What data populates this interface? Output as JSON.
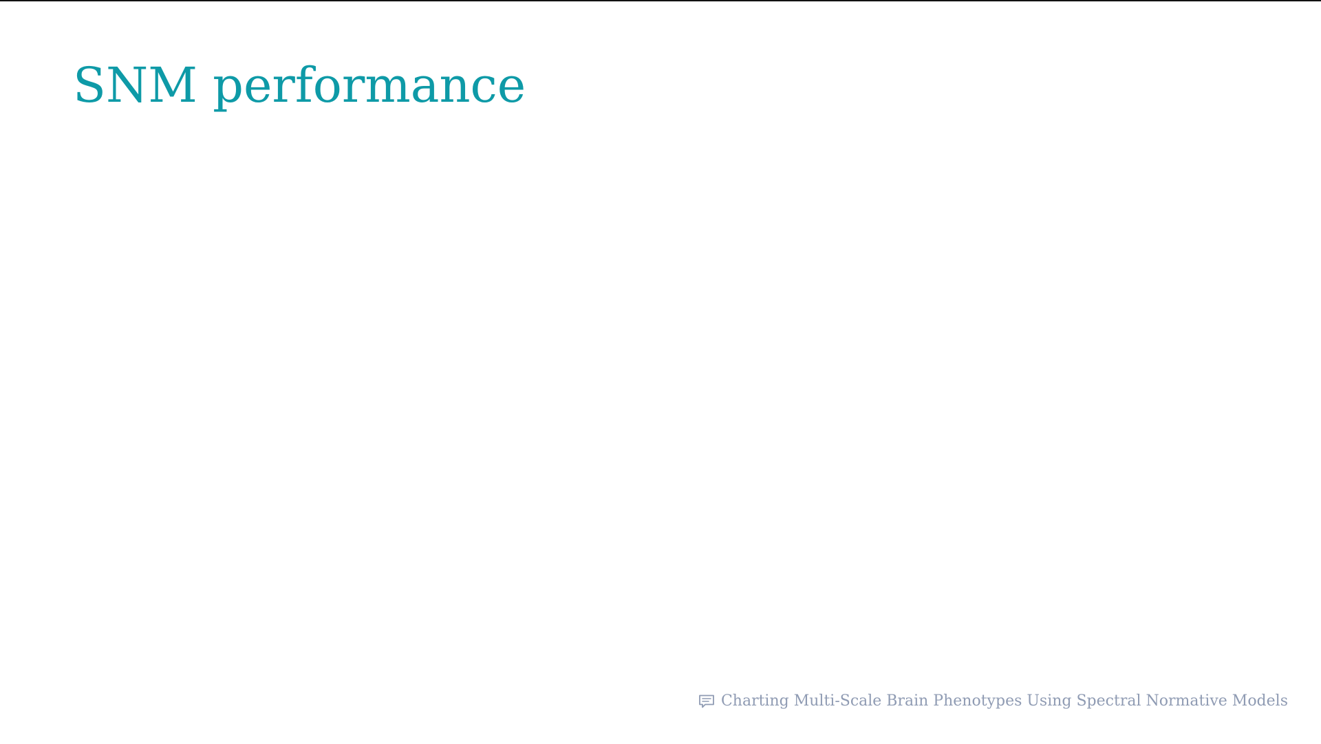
{
  "slide": {
    "title": "SNM performance",
    "footer": {
      "icon": "comment-icon",
      "text": "Charting Multi-Scale Brain Phenotypes Using Spectral Normative Models"
    }
  },
  "colors": {
    "title": "#0e9aa7",
    "footer": "#8f9bb3",
    "background": "#ffffff",
    "top_border": "#111111"
  }
}
